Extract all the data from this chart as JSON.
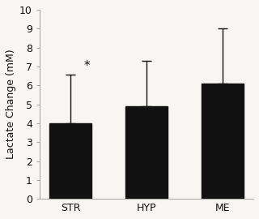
{
  "categories": [
    "STR",
    "HYP",
    "ME"
  ],
  "values": [
    4.0,
    4.9,
    6.1
  ],
  "errors_upper": [
    2.55,
    2.4,
    2.9
  ],
  "bar_color": "#111111",
  "error_color": "#111111",
  "ylabel": "Lactate Change (mM)",
  "ylim": [
    0,
    10
  ],
  "yticks": [
    0,
    1,
    2,
    3,
    4,
    5,
    6,
    7,
    8,
    9,
    10
  ],
  "asterisk_category": "STR",
  "asterisk_text": "*",
  "background_color": "#f8f6f2",
  "bar_width": 0.55,
  "spine_color": "#aaaaaa",
  "tick_label_fontsize": 9,
  "ylabel_fontsize": 9
}
